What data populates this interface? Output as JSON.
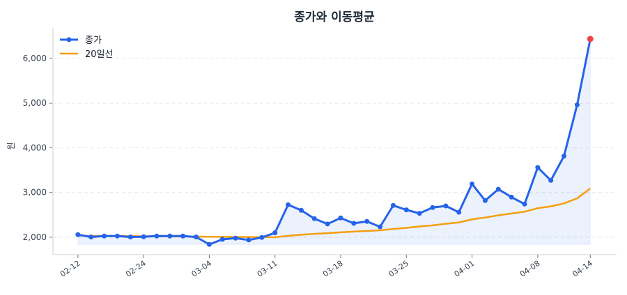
{
  "chart_data": {
    "type": "line",
    "title": "종가와 이동평균",
    "xlabel": "",
    "ylabel": "원",
    "x": [
      "02-12",
      "02-14",
      "02-17",
      "02-19",
      "02-21",
      "02-24",
      "02-25",
      "02-26",
      "02-27",
      "02-28",
      "03-04",
      "03-05",
      "03-06",
      "03-07",
      "03-10",
      "03-11",
      "03-12",
      "03-13",
      "03-14",
      "03-17",
      "03-18",
      "03-19",
      "03-20",
      "03-21",
      "03-24",
      "03-25",
      "03-26",
      "03-27",
      "03-28",
      "03-31",
      "04-01",
      "04-02",
      "04-03",
      "04-04",
      "04-07",
      "04-08",
      "04-09",
      "04-10",
      "04-11",
      "04-14"
    ],
    "x_tick_labels": [
      "02-12",
      "02-24",
      "03-04",
      "03-11",
      "03-18",
      "03-25",
      "04-01",
      "04-08",
      "04-14"
    ],
    "y_ticks": [
      2000,
      3000,
      4000,
      5000,
      6000
    ],
    "y_tick_labels": [
      "2,000",
      "3,000",
      "4,000",
      "5,000",
      "6,000"
    ],
    "ylim": [
      1610,
      6685
    ],
    "grid": "horizontal dashed",
    "legend": "top-left",
    "series": [
      {
        "name": "종가",
        "color": "#2563eb",
        "markers": true,
        "fill_below": true,
        "values": [
          2057,
          2005,
          2026,
          2026,
          2005,
          2010,
          2026,
          2026,
          2026,
          2005,
          1840,
          1953,
          1980,
          1938,
          1995,
          2098,
          2727,
          2602,
          2415,
          2296,
          2431,
          2311,
          2353,
          2233,
          2711,
          2612,
          2534,
          2664,
          2700,
          2560,
          3193,
          2820,
          3074,
          2898,
          2742,
          3561,
          3271,
          3816,
          4962,
          6436
        ]
      },
      {
        "name": "20일선",
        "color": "#f59e0b",
        "markers": false,
        "values": [
          2036,
          2030,
          2028,
          2026,
          2024,
          2022,
          2020,
          2018,
          2016,
          2014,
          2010,
          2008,
          2006,
          2004,
          2002,
          2000,
          2030,
          2055,
          2075,
          2090,
          2110,
          2125,
          2140,
          2155,
          2185,
          2210,
          2240,
          2265,
          2300,
          2330,
          2400,
          2440,
          2490,
          2530,
          2570,
          2650,
          2690,
          2757,
          2870,
          3090
        ]
      }
    ],
    "highlight_last_point_color": "#ef4444"
  }
}
